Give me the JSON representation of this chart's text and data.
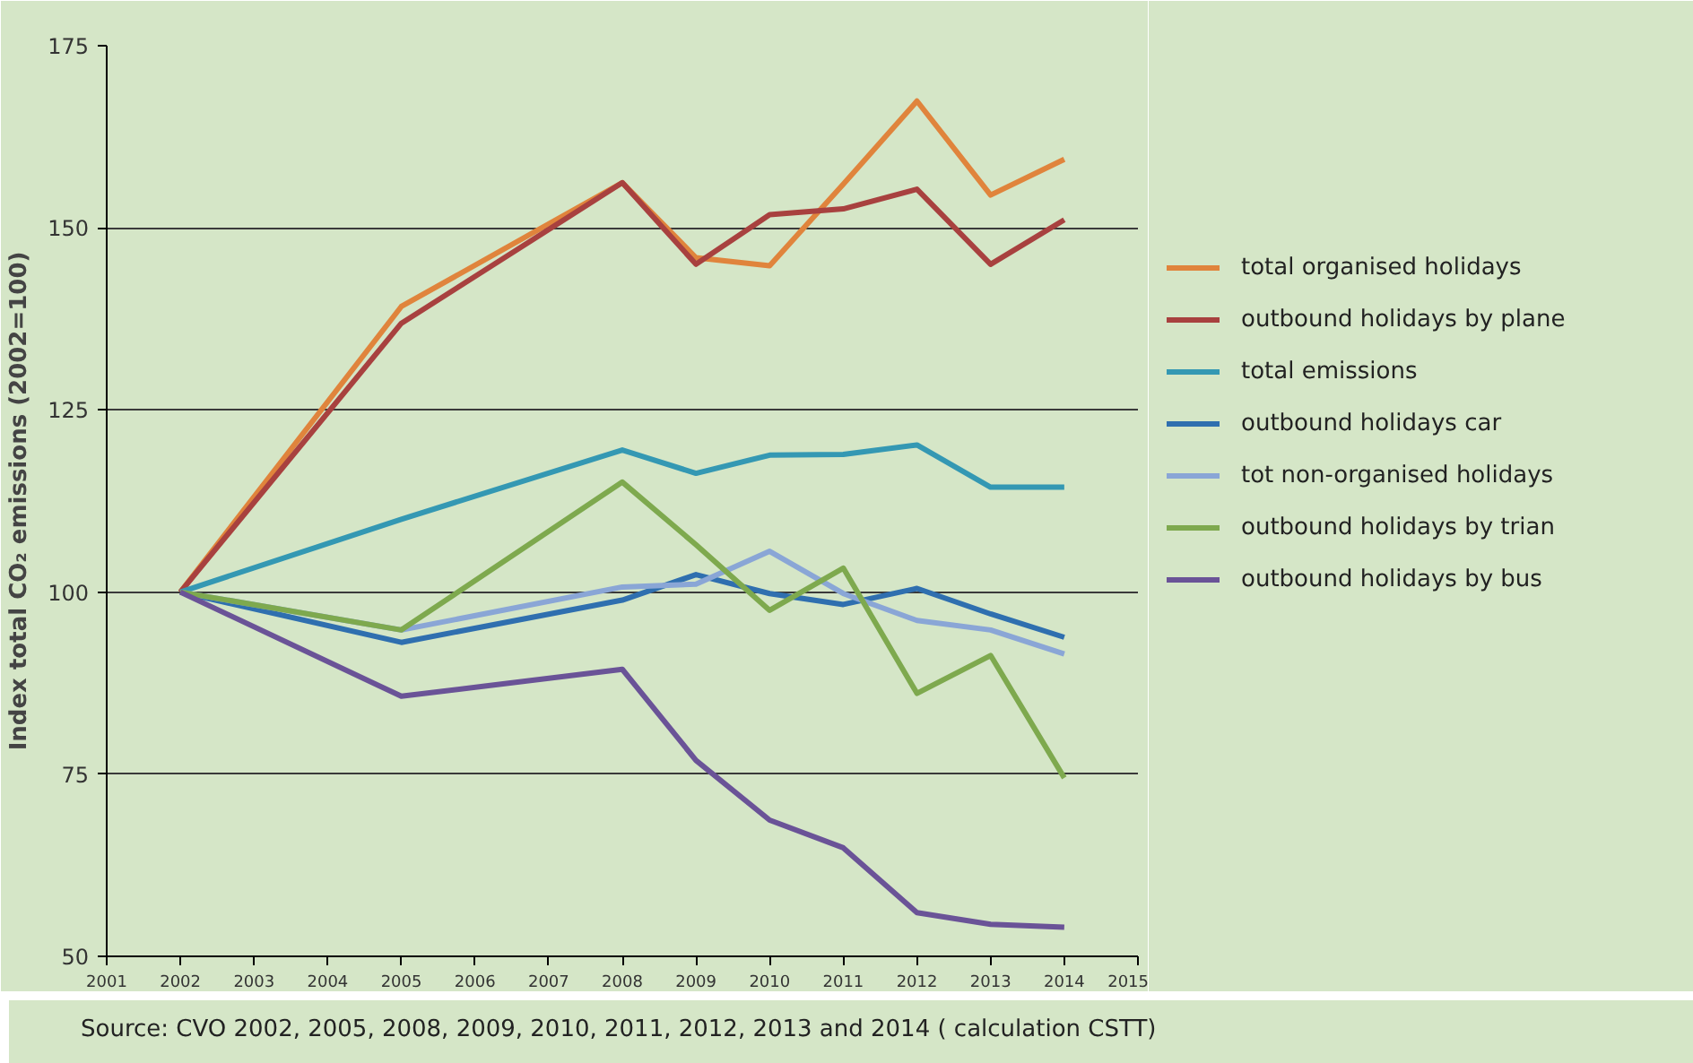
{
  "chart_data": {
    "type": "line",
    "ylabel": "Index total CO₂ emissions (2002=100)",
    "annotations": [
      "Source: CVO 2002, 2005, 2008, 2009, 2010, 2011, 2012,  2013 and 2014 ( calculation CSTT)"
    ],
    "x": [
      2002,
      2005,
      2008,
      2009,
      2010,
      2011,
      2012,
      2013,
      2014
    ],
    "xlim": [
      2001,
      2015
    ],
    "xticks": [
      2001,
      2002,
      2003,
      2004,
      2005,
      2006,
      2007,
      2008,
      2009,
      2010,
      2011,
      2012,
      2013,
      2014,
      2015
    ],
    "ylim": [
      50,
      175
    ],
    "yticks": [
      50,
      75,
      100,
      125,
      150,
      175
    ],
    "grid": "y",
    "legend": "right",
    "marker": "none",
    "line_style": "solid",
    "series": [
      {
        "name": "total organised holidays",
        "color": "#e0843c",
        "values": [
          100,
          139.2,
          156.2,
          145.9,
          144.8,
          156,
          167.4,
          154.5,
          159.4
        ]
      },
      {
        "name": "outbound holidays by plane",
        "color": "#a8413f",
        "values": [
          100,
          136.9,
          156.2,
          145.0,
          151.8,
          152.6,
          155.3,
          145.0,
          151.1
        ]
      },
      {
        "name": "total emissions",
        "color": "#3498b3",
        "values": [
          100,
          110.0,
          119.5,
          116.3,
          118.8,
          118.9,
          120.2,
          114.4,
          114.4
        ]
      },
      {
        "name": "outbound holidays car",
        "color": "#2f6faf",
        "values": [
          100,
          93.1,
          98.9,
          102.4,
          99.8,
          98.3,
          100.5,
          97.0,
          93.8
        ]
      },
      {
        "name": "tot non-organised holidays",
        "color": "#8aa6d6",
        "values": [
          100,
          94.8,
          100.7,
          101.1,
          105.6,
          99.8,
          96.1,
          94.8,
          91.5
        ]
      },
      {
        "name": "outbound holidays by trian",
        "color": "#7ea94e",
        "values": [
          100,
          94.8,
          115.1,
          106.5,
          97.5,
          103.3,
          86.1,
          91.3,
          74.5
        ]
      },
      {
        "name": "outbound holidays by bus",
        "color": "#6a5397",
        "values": [
          100,
          85.7,
          89.4,
          76.9,
          68.7,
          64.9,
          56.0,
          54.4,
          54.0
        ]
      }
    ]
  }
}
